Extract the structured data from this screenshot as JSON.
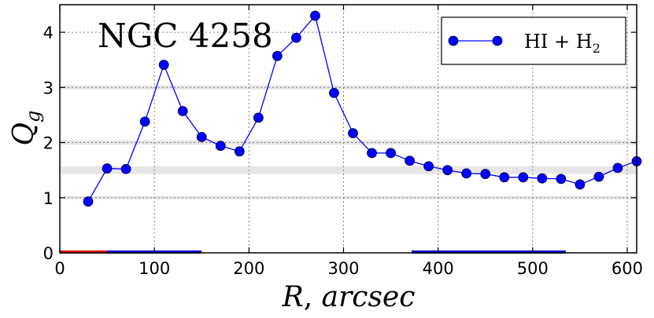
{
  "chart_data": {
    "type": "line",
    "title": "NGC 4258",
    "xlabel": "R, arcsec",
    "ylabel": "Q_g",
    "xlim": [
      0,
      610
    ],
    "ylim": [
      0,
      4.5
    ],
    "x_ticks": [
      0,
      100,
      200,
      300,
      400,
      500,
      600
    ],
    "y_ticks": [
      0,
      1,
      2,
      3,
      4
    ],
    "grid": true,
    "legend_position": "top-right",
    "series": [
      {
        "name": "HI + H2",
        "color": "#0000ff",
        "marker": "circle",
        "x": [
          30,
          50,
          70,
          90,
          110,
          130,
          150,
          170,
          190,
          210,
          230,
          250,
          270,
          290,
          310,
          330,
          350,
          370,
          390,
          410,
          430,
          450,
          470,
          490,
          510,
          530,
          550,
          570,
          590,
          610
        ],
        "y": [
          0.93,
          1.53,
          1.52,
          2.38,
          3.41,
          2.57,
          2.1,
          1.94,
          1.84,
          2.45,
          3.57,
          3.9,
          4.3,
          2.9,
          2.17,
          1.81,
          1.81,
          1.67,
          1.57,
          1.5,
          1.44,
          1.43,
          1.37,
          1.37,
          1.35,
          1.34,
          1.24,
          1.38,
          1.54,
          1.66
        ]
      }
    ],
    "horizontal_bands": [
      {
        "y_from": 0.97,
        "y_to": 1.03,
        "color": "#e6e6e6"
      },
      {
        "y_from": 1.43,
        "y_to": 1.57,
        "color": "#e6e6e6"
      },
      {
        "y_from": 1.96,
        "y_to": 2.04,
        "color": "#e6e6e6"
      },
      {
        "y_from": 2.96,
        "y_to": 3.04,
        "color": "#e6e6e6"
      }
    ],
    "axis_segments": [
      {
        "x_from": 0,
        "x_to": 50,
        "color": "#e00000"
      },
      {
        "x_from": 50,
        "x_to": 150,
        "color": "#0000cc"
      },
      {
        "x_from": 372,
        "x_to": 535,
        "color": "#0000cc"
      }
    ]
  }
}
